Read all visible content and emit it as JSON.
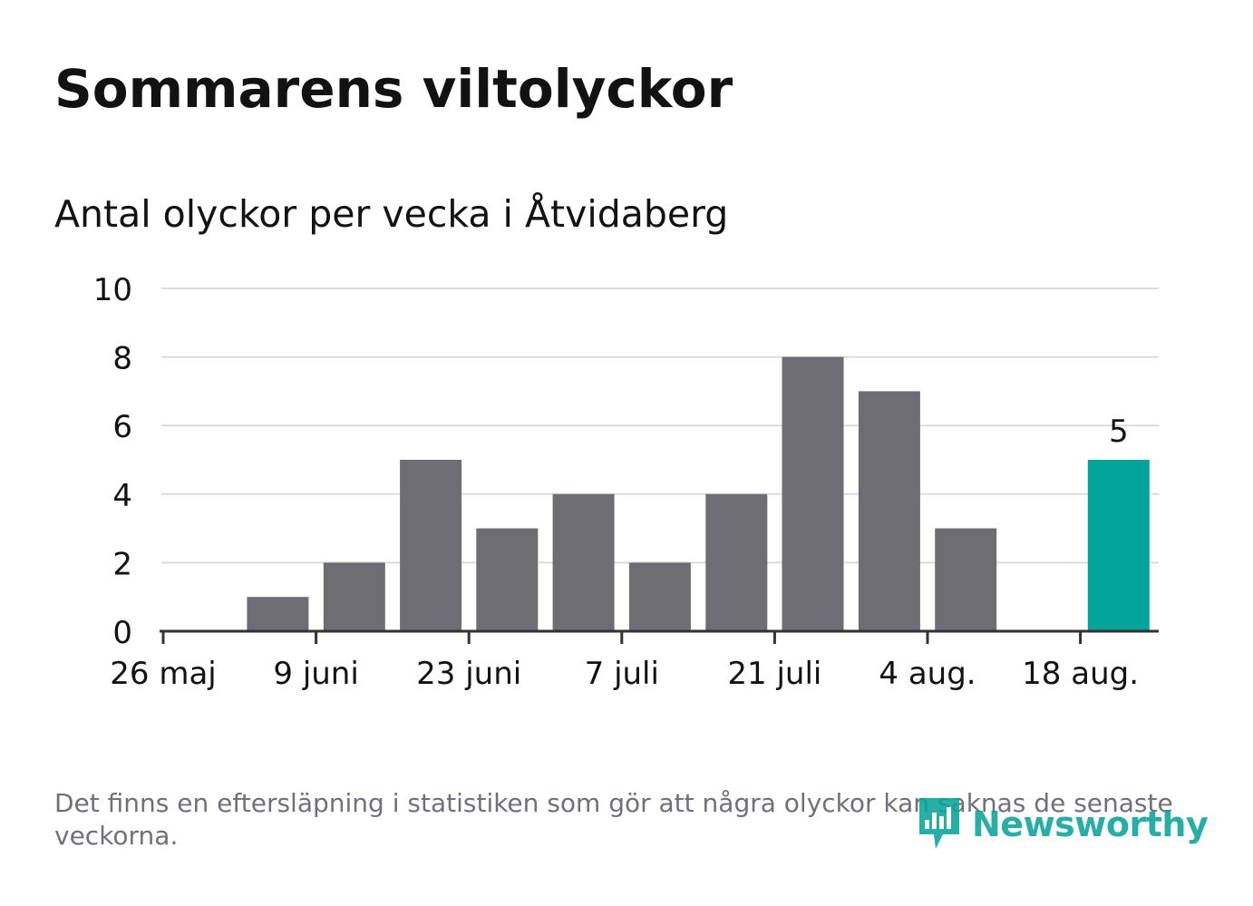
{
  "title": "Sommarens viltolyckor",
  "subtitle": "Antal olyckor per vecka i Åtvidaberg",
  "footnote": "Det finns en eftersläpning i statistiken som gör att några olyckor kan saknas de senaste veckorna.",
  "brand": {
    "name": "Newsworthy",
    "logo_icon": "bar-chart-speech-bubble-icon"
  },
  "colors": {
    "bar": "#6e6d73",
    "highlight": "#02a499",
    "grid": "#dcdcdc",
    "axis": "#333333",
    "text": "#121212",
    "footnote": "#70707a",
    "brand": "#0aa39a"
  },
  "chart_data": {
    "type": "bar",
    "x": [
      "2019-05-26",
      "2019-06-02",
      "2019-06-09",
      "2019-06-16",
      "2019-06-23",
      "2019-06-30",
      "2019-07-07",
      "2019-07-14",
      "2019-07-21",
      "2019-07-28",
      "2019-08-04",
      "2019-08-11",
      "2019-08-18"
    ],
    "values": [
      0,
      1,
      2,
      5,
      3,
      4,
      2,
      4,
      8,
      7,
      3,
      0,
      5
    ],
    "highlight_index": 12,
    "highlight_label": "5",
    "ylim": [
      0,
      10
    ],
    "yticks": [
      0,
      2,
      4,
      6,
      8,
      10
    ],
    "ytick_labels": [
      "0",
      "2",
      "4",
      "6",
      "8",
      "10"
    ],
    "xticks": [
      "2019-05-26",
      "2019-06-09",
      "2019-06-23",
      "2019-07-07",
      "2019-07-21",
      "2019-08-04",
      "2019-08-18"
    ],
    "xtick_labels": [
      "26 maj",
      "9 juni",
      "23 juni",
      "7 juli",
      "21 juli",
      "4 aug.",
      "18 aug."
    ],
    "grid": true,
    "legend": "none"
  }
}
